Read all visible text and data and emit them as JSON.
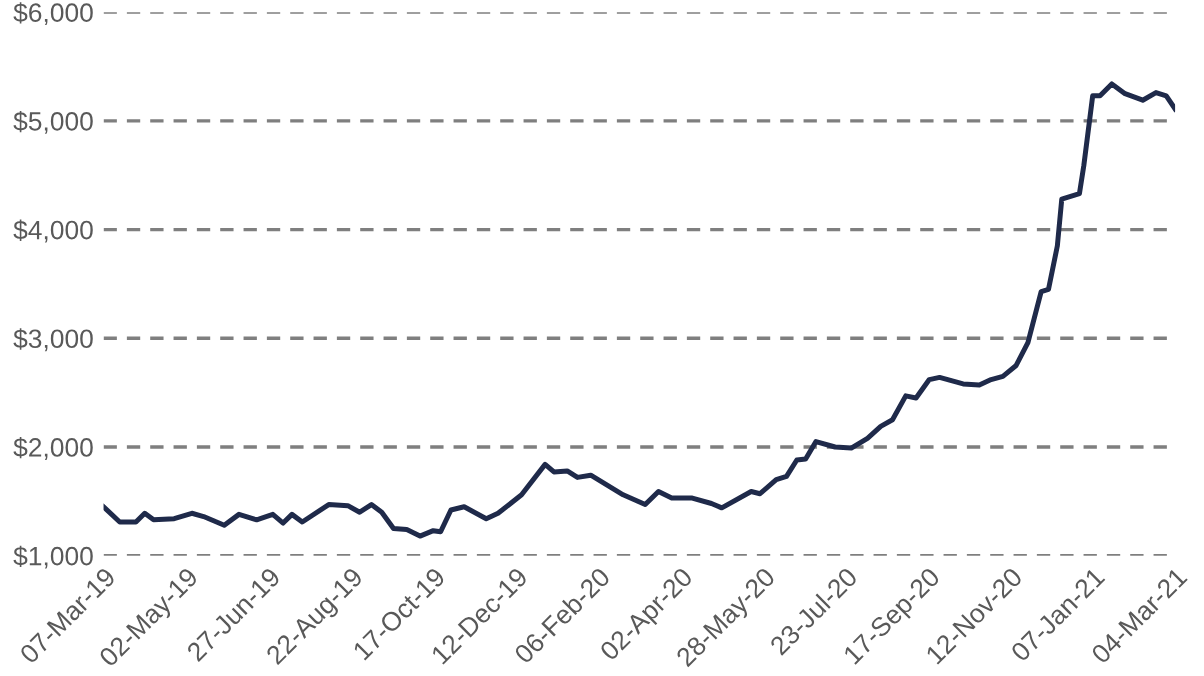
{
  "chart_data": {
    "type": "line",
    "x": [
      "2019-03-07",
      "2019-03-18",
      "2019-03-29",
      "2019-04-04",
      "2019-04-10",
      "2019-04-24",
      "2019-05-06",
      "2019-05-14",
      "2019-05-28",
      "2019-06-07",
      "2019-06-19",
      "2019-06-30",
      "2019-07-07",
      "2019-07-13",
      "2019-07-20",
      "2019-08-07",
      "2019-08-20",
      "2019-08-28",
      "2019-09-05",
      "2019-09-12",
      "2019-09-20",
      "2019-09-29",
      "2019-10-08",
      "2019-10-17",
      "2019-10-22",
      "2019-10-29",
      "2019-11-07",
      "2019-11-22",
      "2019-11-30",
      "2019-12-16",
      "2020-01-01",
      "2020-01-07",
      "2020-01-16",
      "2020-01-23",
      "2020-02-01",
      "2020-02-23",
      "2020-03-09",
      "2020-03-18",
      "2020-03-27",
      "2020-04-10",
      "2020-04-23",
      "2020-04-30",
      "2020-05-20",
      "2020-05-26",
      "2020-06-06",
      "2020-06-13",
      "2020-06-20",
      "2020-06-26",
      "2020-07-03",
      "2020-07-16",
      "2020-07-27",
      "2020-08-07",
      "2020-08-16",
      "2020-08-24",
      "2020-09-02",
      "2020-09-09",
      "2020-09-18",
      "2020-09-25",
      "2020-10-11",
      "2020-10-22",
      "2020-10-30",
      "2020-11-07",
      "2020-11-16",
      "2020-11-24",
      "2020-12-03",
      "2020-12-08",
      "2020-12-14",
      "2020-12-17",
      "2020-12-29",
      "2021-01-01",
      "2021-01-07",
      "2021-01-12",
      "2021-01-20",
      "2021-01-29",
      "2021-02-10",
      "2021-02-19",
      "2021-02-26",
      "2021-03-04"
    ],
    "series": [
      {
        "color": "#1f2a4a",
        "values": [
          1450,
          1310,
          1310,
          1390,
          1330,
          1340,
          1390,
          1360,
          1280,
          1380,
          1330,
          1380,
          1300,
          1380,
          1310,
          1470,
          1460,
          1400,
          1470,
          1400,
          1250,
          1240,
          1180,
          1230,
          1220,
          1420,
          1450,
          1340,
          1390,
          1560,
          1840,
          1770,
          1780,
          1720,
          1740,
          1560,
          1470,
          1590,
          1530,
          1530,
          1480,
          1440,
          1590,
          1570,
          1700,
          1730,
          1880,
          1890,
          2050,
          2000,
          1990,
          2080,
          2190,
          2250,
          2470,
          2450,
          2620,
          2640,
          2580,
          2570,
          2620,
          2650,
          2750,
          2960,
          3430,
          3450,
          3850,
          4280,
          4330,
          4590,
          5230,
          5230,
          5340,
          5250,
          5190,
          5260,
          5230,
          5110
        ]
      }
    ],
    "xlim": [
      "2019-03-07",
      "2021-03-04"
    ],
    "xticks": [
      {
        "value": "2019-03-07",
        "label": "07-Mar-19"
      },
      {
        "value": "2019-05-02",
        "label": "02-May-19"
      },
      {
        "value": "2019-06-27",
        "label": "27-Jun-19"
      },
      {
        "value": "2019-08-22",
        "label": "22-Aug-19"
      },
      {
        "value": "2019-10-17",
        "label": "17-Oct-19"
      },
      {
        "value": "2019-12-12",
        "label": "12-Dec-19"
      },
      {
        "value": "2020-02-06",
        "label": "06-Feb-20"
      },
      {
        "value": "2020-04-02",
        "label": "02-Apr-20"
      },
      {
        "value": "2020-05-28",
        "label": "28-May-20"
      },
      {
        "value": "2020-07-23",
        "label": "23-Jul-20"
      },
      {
        "value": "2020-09-17",
        "label": "17-Sep-20"
      },
      {
        "value": "2020-11-12",
        "label": "12-Nov-20"
      },
      {
        "value": "2021-01-07",
        "label": "07-Jan-21"
      },
      {
        "value": "2021-03-04",
        "label": "04-Mar-21"
      }
    ],
    "ylim": [
      1000,
      6000
    ],
    "yticks": [
      {
        "value": 1000,
        "label": "$1,000"
      },
      {
        "value": 2000,
        "label": "$2,000"
      },
      {
        "value": 3000,
        "label": "$3,000"
      },
      {
        "value": 4000,
        "label": "$4,000"
      },
      {
        "value": 5000,
        "label": "$5,000"
      },
      {
        "value": 6000,
        "label": "$6,000"
      }
    ],
    "grid": "y",
    "marker": "none",
    "line_style": "solid",
    "legend": false
  }
}
